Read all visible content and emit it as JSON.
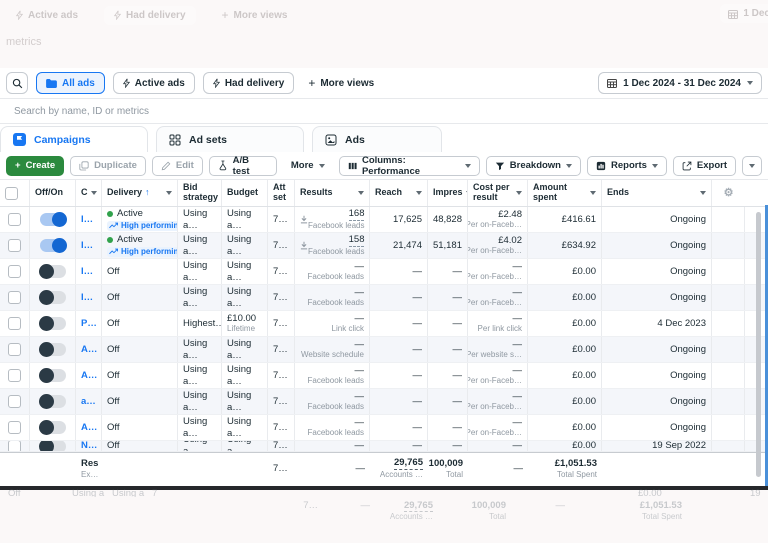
{
  "icons": {
    "plus": "+",
    "gear": "⚙",
    "sort_up": "↑"
  },
  "colors": {
    "accent": "#1877f2",
    "create_green": "#2b8a3e",
    "active_green": "#31a24c"
  },
  "ghost_top": {
    "active_ads": "Active ads",
    "had_delivery": "Had delivery",
    "more_views": "More views",
    "date": "1 Dec",
    "metrics": "metrics"
  },
  "filter_bar": {
    "views": [
      {
        "label": "All ads"
      },
      {
        "label": "Active ads"
      },
      {
        "label": "Had delivery"
      },
      {
        "label": "More views"
      }
    ],
    "date_range": "1 Dec 2024 - 31 Dec 2024"
  },
  "search": {
    "placeholder": "Search by name, ID or metrics"
  },
  "tabs": [
    {
      "label": "Campaigns"
    },
    {
      "label": "Ad sets"
    },
    {
      "label": "Ads"
    }
  ],
  "toolbar": {
    "create": "Create",
    "duplicate": "Duplicate",
    "edit": "Edit",
    "ab_test": "A/B test",
    "more": "More",
    "columns": "Columns: Performance",
    "breakdown": "Breakdown",
    "reports": "Reports",
    "export": "Export"
  },
  "table": {
    "headers": {
      "off_on": "Off/On",
      "name": "C",
      "delivery": "Delivery",
      "bid": "Bid strategy",
      "budget": "Budget",
      "att": "Att set",
      "results": "Results",
      "reach": "Reach",
      "impressions": "Impres",
      "cost_per_result": "Cost per result",
      "amount_spent": "Amount spent",
      "ends": "Ends"
    },
    "rows": [
      {
        "on": true,
        "name": "I…",
        "status": "Active",
        "active": true,
        "badge": "High performin",
        "bid": "Using a…",
        "budget": "Using a…",
        "budget_sub": "",
        "att": "7…",
        "download_icon": true,
        "results": "168",
        "results_sub": "Facebook leads",
        "reach": "17,625",
        "impressions": "48,828",
        "cpr": "£2.48",
        "cpr_sub": "Per on-Faceb…",
        "amount": "£416.61",
        "ends": "Ongoing",
        "partial": false
      },
      {
        "on": true,
        "name": "I…",
        "status": "Active",
        "active": true,
        "badge": "High performin",
        "bid": "Using a…",
        "budget": "Using a…",
        "budget_sub": "",
        "att": "7…",
        "download_icon": true,
        "results": "158",
        "results_sub": "Facebook leads",
        "reach": "21,474",
        "impressions": "51,181",
        "cpr": "£4.02",
        "cpr_sub": "Per on-Faceb…",
        "amount": "£634.92",
        "ends": "Ongoing",
        "partial": false
      },
      {
        "on": false,
        "name": "I…",
        "status": "Off",
        "active": false,
        "badge": "",
        "bid": "Using a…",
        "budget": "Using a…",
        "budget_sub": "",
        "att": "7…",
        "download_icon": false,
        "results": "—",
        "results_sub": "Facebook leads",
        "reach": "—",
        "impressions": "—",
        "cpr": "—",
        "cpr_sub": "Per on-Faceb…",
        "amount": "£0.00",
        "ends": "Ongoing",
        "partial": false
      },
      {
        "on": false,
        "name": "I…",
        "status": "Off",
        "active": false,
        "badge": "",
        "bid": "Using a…",
        "budget": "Using a…",
        "budget_sub": "",
        "att": "7…",
        "download_icon": false,
        "results": "—",
        "results_sub": "Facebook leads",
        "reach": "—",
        "impressions": "—",
        "cpr": "—",
        "cpr_sub": "Per on-Faceb…",
        "amount": "£0.00",
        "ends": "Ongoing",
        "partial": false
      },
      {
        "on": false,
        "name": "P…",
        "status": "Off",
        "active": false,
        "badge": "",
        "bid": "Highest…",
        "budget": "£10.00",
        "budget_sub": "Lifetime",
        "att": "7…",
        "download_icon": false,
        "results": "—",
        "results_sub": "Link click",
        "reach": "—",
        "impressions": "—",
        "cpr": "—",
        "cpr_sub": "Per link click",
        "amount": "£0.00",
        "ends": "4 Dec 2023",
        "partial": false
      },
      {
        "on": false,
        "name": "A…",
        "status": "Off",
        "active": false,
        "badge": "",
        "bid": "Using a…",
        "budget": "Using a…",
        "budget_sub": "",
        "att": "7…",
        "download_icon": false,
        "results": "—",
        "results_sub": "Website schedule",
        "reach": "—",
        "impressions": "—",
        "cpr": "—",
        "cpr_sub": "Per website s…",
        "amount": "£0.00",
        "ends": "Ongoing",
        "partial": false
      },
      {
        "on": false,
        "name": "A…",
        "status": "Off",
        "active": false,
        "badge": "",
        "bid": "Using a…",
        "budget": "Using a…",
        "budget_sub": "",
        "att": "7…",
        "download_icon": false,
        "results": "—",
        "results_sub": "Facebook leads",
        "reach": "—",
        "impressions": "—",
        "cpr": "—",
        "cpr_sub": "Per on-Faceb…",
        "amount": "£0.00",
        "ends": "Ongoing",
        "partial": false
      },
      {
        "on": false,
        "name": "a…",
        "status": "Off",
        "active": false,
        "badge": "",
        "bid": "Using a…",
        "budget": "Using a…",
        "budget_sub": "",
        "att": "7…",
        "download_icon": false,
        "results": "—",
        "results_sub": "Facebook leads",
        "reach": "—",
        "impressions": "—",
        "cpr": "—",
        "cpr_sub": "Per on-Faceb…",
        "amount": "£0.00",
        "ends": "Ongoing",
        "partial": false
      },
      {
        "on": false,
        "name": "A…",
        "status": "Off",
        "active": false,
        "badge": "",
        "bid": "Using a…",
        "budget": "Using a…",
        "budget_sub": "",
        "att": "7…",
        "download_icon": false,
        "results": "—",
        "results_sub": "Facebook leads",
        "reach": "—",
        "impressions": "—",
        "cpr": "—",
        "cpr_sub": "Per on-Faceb…",
        "amount": "£0.00",
        "ends": "Ongoing",
        "partial": false
      },
      {
        "on": false,
        "name": "N…",
        "status": "Off",
        "active": false,
        "badge": "",
        "bid": "Using a…",
        "budget": "Using a…",
        "budget_sub": "",
        "att": "7…",
        "download_icon": false,
        "results": "—",
        "results_sub": "",
        "reach": "—",
        "impressions": "—",
        "cpr": "—",
        "cpr_sub": "",
        "amount": "£0.00",
        "ends": "19 Sep 2022",
        "partial": true
      }
    ],
    "footer": {
      "label": "Res",
      "sublabel": "Ex…",
      "att": "7…",
      "results": "—",
      "reach": "29,765",
      "reach_sub": "Accounts …",
      "impressions": "100,009",
      "impressions_sub": "Total",
      "cost_per_result": "—",
      "amount": "£1,051.53",
      "amount_sub": "Total Spent"
    }
  },
  "ghost_bottom": {
    "off": "Off",
    "using_a": "Using a",
    "using_b": "Using a",
    "seven": "7",
    "amount": "£0.00",
    "date": "19",
    "f_att": "7…",
    "f_results": "—",
    "f_reach": "29,765",
    "f_reach_sub": "Accounts …",
    "f_impressions": "100,009",
    "f_impressions_sub": "Total",
    "f_cpr": "—",
    "f_amount": "£1,051.53",
    "f_amount_sub": "Total Spent"
  }
}
